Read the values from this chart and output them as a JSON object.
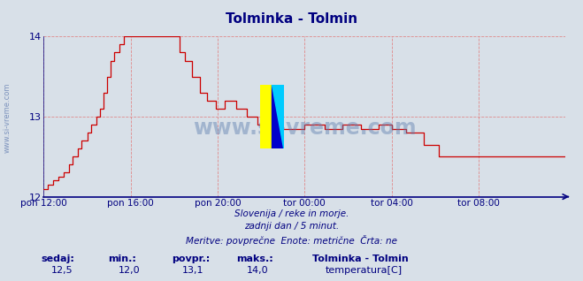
{
  "title": "Tolminka - Tolmin",
  "title_color": "#000080",
  "background_color": "#d8e0e8",
  "plot_bg_color": "#d8e0e8",
  "grid_color": "#e08080",
  "axis_color": "#000080",
  "line_color": "#cc0000",
  "ylim": [
    12.0,
    14.0
  ],
  "yticks": [
    12,
    13,
    14
  ],
  "x_tick_labels": [
    "pon 12:00",
    "pon 16:00",
    "pon 20:00",
    "tor 00:00",
    "tor 04:00",
    "tor 08:00"
  ],
  "x_tick_positions": [
    0,
    48,
    96,
    144,
    192,
    240
  ],
  "total_points": 289,
  "watermark": "www.si-vreme.com",
  "footer_line1": "Slovenija / reke in morje.",
  "footer_line2": "zadnji dan / 5 minut.",
  "footer_line3": "Meritve: povprečne  Enote: metrične  Črta: ne",
  "legend_label1_key": "sedaj:",
  "legend_label1_val": "12,5",
  "legend_label2_key": "min.:",
  "legend_label2_val": "12,0",
  "legend_label3_key": "povpr.:",
  "legend_label3_val": "13,1",
  "legend_label4_key": "maks.:",
  "legend_label4_val": "14,0",
  "legend_series_name": "Tolminka - Tolmin",
  "legend_series_label": "temperatura[C]",
  "legend_series_color": "#cc0000",
  "left_label": "www.si-vreme.com",
  "left_label_color": "#4060a0",
  "watermark_color": "#6080b0",
  "logo_yellow": "#ffff00",
  "logo_cyan": "#00ccff",
  "logo_blue": "#0000cc"
}
